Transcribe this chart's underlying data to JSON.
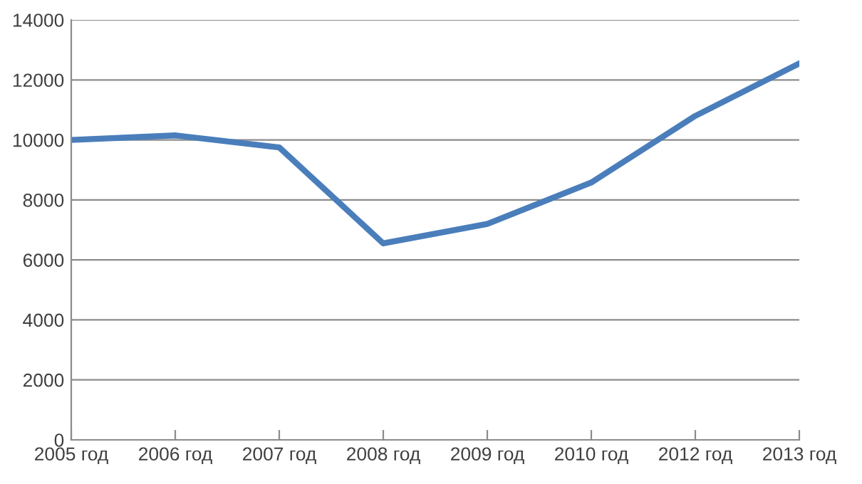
{
  "chart_data": {
    "type": "line",
    "categories": [
      "2005 год",
      "2006 год",
      "2007 год",
      "2008 год",
      "2009 год",
      "2010 год",
      "2012 год",
      "2013 год"
    ],
    "series": [
      {
        "color": "#4a7ebb",
        "values": [
          10000,
          10150,
          9750,
          6550,
          7200,
          8580,
          10800,
          12550
        ]
      }
    ],
    "ylim": [
      0,
      14000
    ],
    "yticks": [
      0,
      2000,
      4000,
      6000,
      8000,
      10000,
      12000,
      14000
    ],
    "grid": "y",
    "legend": false,
    "marker": "none",
    "line_style": "solid"
  }
}
